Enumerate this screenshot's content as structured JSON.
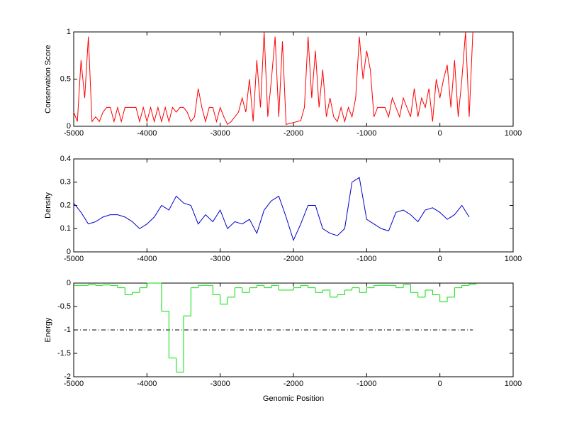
{
  "chart_data": [
    {
      "type": "line",
      "ylabel": "Conservation Score",
      "color": "#ff0000",
      "x": [
        -5000,
        -4950,
        -4900,
        -4850,
        -4800,
        -4750,
        -4700,
        -4650,
        -4600,
        -4550,
        -4500,
        -4450,
        -4400,
        -4350,
        -4300,
        -4250,
        -4200,
        -4150,
        -4100,
        -4050,
        -4000,
        -3950,
        -3900,
        -3850,
        -3800,
        -3750,
        -3700,
        -3650,
        -3600,
        -3550,
        -3500,
        -3450,
        -3400,
        -3350,
        -3300,
        -3250,
        -3200,
        -3150,
        -3100,
        -3050,
        -3000,
        -2950,
        -2900,
        -2850,
        -2800,
        -2750,
        -2700,
        -2650,
        -2600,
        -2550,
        -2500,
        -2450,
        -2400,
        -2350,
        -2300,
        -2250,
        -2200,
        -2150,
        -2100,
        -2050,
        -2000,
        -1950,
        -1900,
        -1850,
        -1800,
        -1750,
        -1700,
        -1650,
        -1600,
        -1550,
        -1500,
        -1450,
        -1400,
        -1350,
        -1300,
        -1250,
        -1200,
        -1150,
        -1100,
        -1050,
        -1000,
        -950,
        -900,
        -850,
        -800,
        -750,
        -700,
        -650,
        -600,
        -550,
        -500,
        -450,
        -400,
        -350,
        -300,
        -250,
        -200,
        -150,
        -100,
        -50,
        0,
        50,
        100,
        150,
        200,
        250,
        300,
        350,
        400,
        450
      ],
      "values": [
        0.15,
        0.05,
        0.7,
        0.3,
        0.95,
        0.05,
        0.1,
        0.05,
        0.15,
        0.2,
        0.2,
        0.05,
        0.2,
        0.05,
        0.2,
        0.2,
        0.2,
        0.2,
        0.05,
        0.2,
        0.05,
        0.2,
        0.05,
        0.2,
        0.05,
        0.2,
        0.05,
        0.2,
        0.15,
        0.2,
        0.2,
        0.15,
        0.05,
        0.1,
        0.4,
        0.2,
        0.05,
        0.2,
        0.2,
        0.05,
        0.2,
        0.1,
        0.02,
        0.05,
        0.1,
        0.15,
        0.3,
        0.15,
        0.5,
        0.05,
        0.7,
        0.2,
        1,
        0.1,
        0.5,
        0.95,
        0.1,
        0.9,
        0.02,
        0.03,
        0.04,
        0.05,
        0.06,
        0.2,
        0.95,
        0.3,
        0.8,
        0.2,
        0.6,
        0.1,
        0.3,
        0.1,
        0.05,
        0.2,
        0.05,
        0.2,
        0.1,
        0.3,
        0.95,
        0.5,
        0.8,
        0.6,
        0.1,
        0.2,
        0.2,
        0.2,
        0.1,
        0.3,
        0.2,
        0.1,
        0.3,
        0.2,
        0.1,
        0.4,
        0.1,
        0.3,
        0.2,
        0.4,
        0.05,
        0.5,
        0.3,
        0.5,
        0.65,
        0.2,
        0.7,
        0.1,
        0.5,
        1,
        0.1,
        1
      ],
      "xlim": [
        -5000,
        1000
      ],
      "xticks": [
        -5000,
        -4000,
        -3000,
        -2000,
        -1000,
        0,
        1000
      ],
      "ylim": [
        0,
        1
      ],
      "yticks": [
        0,
        0.5,
        1
      ]
    },
    {
      "type": "line",
      "ylabel": "Density",
      "color": "#0000cc",
      "x": [
        -5000,
        -4900,
        -4800,
        -4700,
        -4600,
        -4500,
        -4400,
        -4300,
        -4200,
        -4100,
        -4000,
        -3900,
        -3800,
        -3700,
        -3600,
        -3500,
        -3400,
        -3300,
        -3200,
        -3100,
        -3000,
        -2900,
        -2800,
        -2700,
        -2600,
        -2500,
        -2400,
        -2300,
        -2200,
        -2100,
        -2000,
        -1900,
        -1800,
        -1700,
        -1600,
        -1500,
        -1400,
        -1300,
        -1200,
        -1100,
        -1000,
        -900,
        -800,
        -700,
        -600,
        -500,
        -400,
        -300,
        -200,
        -100,
        0,
        100,
        200,
        300,
        400
      ],
      "values": [
        0.21,
        0.17,
        0.12,
        0.13,
        0.15,
        0.16,
        0.16,
        0.15,
        0.13,
        0.1,
        0.12,
        0.15,
        0.2,
        0.18,
        0.24,
        0.21,
        0.2,
        0.12,
        0.16,
        0.13,
        0.18,
        0.1,
        0.13,
        0.12,
        0.14,
        0.08,
        0.18,
        0.22,
        0.24,
        0.15,
        0.05,
        0.12,
        0.2,
        0.2,
        0.1,
        0.08,
        0.07,
        0.1,
        0.3,
        0.32,
        0.14,
        0.12,
        0.1,
        0.09,
        0.17,
        0.18,
        0.16,
        0.13,
        0.18,
        0.19,
        0.17,
        0.14,
        0.16,
        0.2,
        0.15
      ],
      "xlim": [
        -5000,
        1000
      ],
      "xticks": [
        -5000,
        -4000,
        -3000,
        -2000,
        -1000,
        0,
        1000
      ],
      "ylim": [
        0,
        0.4
      ],
      "yticks": [
        0,
        0.1,
        0.2,
        0.3,
        0.4
      ]
    },
    {
      "type": "step",
      "ylabel": "Energy",
      "xlabel": "Genomic Position",
      "color": "#00dd00",
      "x": [
        -5000,
        -4900,
        -4800,
        -4700,
        -4600,
        -4500,
        -4400,
        -4300,
        -4200,
        -4100,
        -4000,
        -3900,
        -3800,
        -3700,
        -3600,
        -3500,
        -3400,
        -3300,
        -3200,
        -3100,
        -3000,
        -2900,
        -2800,
        -2700,
        -2600,
        -2500,
        -2400,
        -2300,
        -2200,
        -2100,
        -2000,
        -1900,
        -1800,
        -1700,
        -1600,
        -1500,
        -1400,
        -1300,
        -1200,
        -1100,
        -1000,
        -900,
        -800,
        -700,
        -600,
        -500,
        -400,
        -300,
        -200,
        -100,
        0,
        100,
        200,
        300,
        400
      ],
      "values": [
        -0.05,
        -0.05,
        -0.03,
        -0.05,
        -0.04,
        -0.05,
        -0.1,
        -0.25,
        -0.2,
        -0.1,
        0,
        0,
        -0.6,
        -1.6,
        -1.9,
        -0.7,
        -0.1,
        -0.05,
        -0.05,
        -0.25,
        -0.45,
        -0.3,
        -0.1,
        -0.2,
        -0.1,
        -0.05,
        -0.1,
        -0.05,
        -0.15,
        -0.15,
        -0.1,
        -0.05,
        -0.1,
        -0.2,
        -0.15,
        -0.3,
        -0.25,
        -0.15,
        -0.1,
        -0.2,
        -0.1,
        -0.05,
        -0.05,
        -0.05,
        -0.1,
        -0.03,
        -0.2,
        -0.3,
        -0.15,
        -0.25,
        -0.4,
        -0.3,
        -0.1,
        -0.05,
        -0.02
      ],
      "reference_line": {
        "y": -1,
        "x": [
          -5000,
          450
        ],
        "color": "#000000",
        "style": "dash-dot"
      },
      "xlim": [
        -5000,
        1000
      ],
      "xticks": [
        -5000,
        -4000,
        -3000,
        -2000,
        -1000,
        0,
        1000
      ],
      "ylim": [
        -2,
        0
      ],
      "yticks": [
        -2,
        -1.5,
        -1,
        -0.5,
        0
      ]
    }
  ]
}
